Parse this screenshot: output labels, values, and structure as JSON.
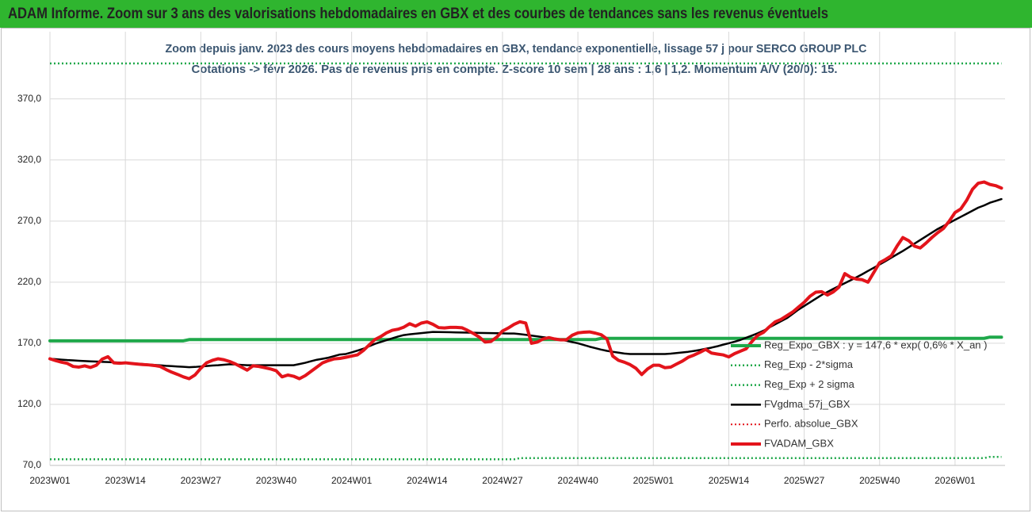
{
  "header": {
    "title": "ADAM Informe. Zoom sur 3 ans des valorisations hebdomadaires en GBX et des courbes de tendances sans les revenus éventuels"
  },
  "chart_data": {
    "type": "line",
    "title": "Zoom depuis janv. 2023 des cours moyens hebdomadaires en GBX, tendance exponentielle, lissage 57 j pour SERCO GROUP PLC",
    "subtitle": "Cotations -> févr 2026. Pas de revenus pris en compte. Z-score 10 sem | 28 ans : 1,6 | 1,2. Momentum A/V (20/0): 15.",
    "grid": true,
    "ylim": [
      70,
      425
    ],
    "yticks": [
      {
        "value": 70,
        "label": "70,0"
      },
      {
        "value": 120,
        "label": "120,0"
      },
      {
        "value": 170,
        "label": "170,0"
      },
      {
        "value": 220,
        "label": "220,0"
      },
      {
        "value": 270,
        "label": "270,0"
      },
      {
        "value": 320,
        "label": "320,0"
      },
      {
        "value": 370,
        "label": "370,0"
      }
    ],
    "categories": [
      "2023W01",
      null,
      null,
      null,
      null,
      null,
      null,
      null,
      null,
      null,
      null,
      null,
      null,
      "2023W14",
      null,
      null,
      null,
      null,
      null,
      null,
      null,
      null,
      null,
      null,
      null,
      null,
      "2023W27",
      null,
      null,
      null,
      null,
      null,
      null,
      null,
      null,
      null,
      null,
      null,
      null,
      "2023W40",
      null,
      null,
      null,
      null,
      null,
      null,
      null,
      null,
      null,
      null,
      null,
      null,
      "2024W01",
      null,
      null,
      null,
      null,
      null,
      null,
      null,
      null,
      null,
      null,
      null,
      null,
      "2024W14",
      null,
      null,
      null,
      null,
      null,
      null,
      null,
      null,
      null,
      null,
      null,
      null,
      "2024W27",
      null,
      null,
      null,
      null,
      null,
      null,
      null,
      null,
      null,
      null,
      null,
      null,
      "2024W40",
      null,
      null,
      null,
      null,
      null,
      null,
      null,
      null,
      null,
      null,
      null,
      null,
      "2025W01",
      null,
      null,
      null,
      null,
      null,
      null,
      null,
      null,
      null,
      null,
      null,
      null,
      "2025W14",
      null,
      null,
      null,
      null,
      null,
      null,
      null,
      null,
      null,
      null,
      null,
      null,
      "2025W27",
      null,
      null,
      null,
      null,
      null,
      null,
      null,
      null,
      null,
      null,
      null,
      null,
      "2025W40",
      null,
      null,
      null,
      null,
      null,
      null,
      null,
      null,
      null,
      null,
      null,
      null,
      "2026W01",
      null,
      null,
      null,
      null,
      null,
      null,
      null,
      null
    ],
    "series": [
      {
        "name": "Reg_Expo_GBX : y = 147,6 * exp( 0,6% *  X_an )",
        "color": "#1fa84a",
        "line_width": 4,
        "dashed": false,
        "values": [
          172,
          172,
          172,
          172,
          172,
          172,
          172,
          172,
          172,
          172,
          172,
          172,
          172,
          172,
          172,
          172,
          172,
          172,
          172,
          172,
          172,
          172,
          172,
          172,
          173,
          173,
          173,
          173,
          173,
          173,
          173,
          173,
          173,
          173,
          173,
          173,
          173,
          173,
          173,
          173,
          173,
          173,
          173,
          173,
          173,
          173,
          173,
          173,
          173,
          173,
          173,
          173,
          173,
          173,
          173,
          173,
          173,
          173,
          173,
          173,
          173,
          173,
          173,
          173,
          173,
          173,
          173,
          173,
          173,
          173,
          173,
          173,
          173,
          173,
          173,
          173,
          173,
          173,
          173,
          173,
          173,
          173,
          173,
          173,
          173,
          173,
          173,
          173,
          173,
          173,
          173,
          173,
          173,
          173,
          173,
          174,
          174,
          174,
          174,
          174,
          174,
          174,
          174,
          174,
          174,
          174,
          174,
          174,
          174,
          174,
          174,
          174,
          174,
          174,
          174,
          174,
          174,
          174,
          174,
          174,
          174,
          174,
          174,
          174,
          174,
          174,
          174,
          174,
          174,
          174,
          174,
          174,
          174,
          174,
          174,
          174,
          174,
          174,
          174,
          174,
          174,
          174,
          174,
          174,
          174,
          174,
          174,
          174,
          174,
          174,
          174,
          174,
          174,
          174,
          174,
          174,
          174,
          174,
          174,
          174,
          174,
          174,
          175,
          175,
          175
        ]
      },
      {
        "name": "Reg_Exp - 2*sigma",
        "color": "#1fa84a",
        "line_width": 2.5,
        "dashed": true,
        "values": [
          75,
          75,
          75,
          75,
          75,
          75,
          75,
          75,
          75,
          75,
          75,
          75,
          75,
          75,
          75,
          75,
          75,
          75,
          75,
          75,
          75,
          75,
          75,
          75,
          75,
          75,
          75,
          75,
          75,
          75,
          75,
          75,
          75,
          75,
          75,
          75,
          75,
          75,
          75,
          75,
          75,
          75,
          75,
          75,
          75,
          75,
          75,
          75,
          75,
          75,
          75,
          75,
          75,
          75,
          75,
          75,
          75,
          75,
          75,
          75,
          75,
          75,
          75,
          75,
          75,
          75,
          75,
          75,
          75,
          75,
          75,
          75,
          75,
          75,
          75,
          75,
          75,
          75,
          75,
          75,
          75,
          76,
          76,
          76,
          76,
          76,
          76,
          76,
          76,
          76,
          76,
          76,
          76,
          76,
          76,
          76,
          76,
          76,
          76,
          76,
          76,
          76,
          76,
          76,
          76,
          76,
          76,
          76,
          76,
          76,
          76,
          76,
          76,
          76,
          76,
          76,
          76,
          76,
          76,
          76,
          76,
          76,
          76,
          76,
          76,
          76,
          76,
          76,
          76,
          76,
          76,
          76,
          76,
          76,
          76,
          76,
          76,
          76,
          76,
          76,
          76,
          76,
          76,
          76,
          76,
          76,
          76,
          76,
          76,
          76,
          76,
          76,
          76,
          76,
          76,
          76,
          76,
          76,
          76,
          76,
          76,
          76,
          77,
          77,
          77
        ]
      },
      {
        "name": "Reg_Exp + 2 sigma",
        "color": "#1fa84a",
        "line_width": 2.5,
        "dashed": true,
        "values": [
          399,
          399,
          399,
          399,
          399,
          399,
          399,
          399,
          399,
          399,
          399,
          399,
          399,
          399,
          399,
          399,
          399,
          399,
          399,
          399,
          399,
          399,
          399,
          399,
          399,
          399,
          399,
          399,
          399,
          399,
          399,
          399,
          399,
          399,
          399,
          399,
          399,
          399,
          399,
          399,
          399,
          399,
          399,
          399,
          399,
          399,
          399,
          399,
          399,
          399,
          399,
          399,
          399,
          399,
          399,
          399,
          399,
          399,
          399,
          399,
          399,
          399,
          399,
          399,
          399,
          399,
          399,
          399,
          399,
          399,
          399,
          399,
          399,
          399,
          399,
          399,
          399,
          399,
          399,
          399,
          399,
          399,
          399,
          399,
          399,
          399,
          399,
          399,
          399,
          399,
          399,
          399,
          399,
          399,
          399,
          399,
          399,
          399,
          399,
          399,
          399,
          399,
          399,
          399,
          399,
          399,
          399,
          399,
          399,
          399,
          399,
          399,
          399,
          399,
          399,
          399,
          399,
          399,
          399,
          399,
          399,
          399,
          399,
          399,
          399,
          399,
          399,
          399,
          399,
          399,
          399,
          399,
          399,
          399,
          399,
          399,
          399,
          399,
          399,
          399,
          399,
          399,
          399,
          399,
          399,
          399,
          399,
          399,
          399,
          399,
          399,
          399,
          399,
          399,
          399,
          399,
          399,
          399,
          399,
          399,
          399,
          399,
          399,
          399,
          399
        ]
      },
      {
        "name": "FVgdma_57j_GBX",
        "color": "#000000",
        "line_width": 2.5,
        "dashed": false,
        "values": [
          157.3,
          157,
          156.6,
          156.2,
          156,
          155.7,
          155.4,
          155.2,
          155,
          154.8,
          154.6,
          154.4,
          154.2,
          154,
          153.7,
          153.3,
          153,
          152.6,
          152.3,
          151.9,
          151.5,
          151.3,
          151,
          150.7,
          150.4,
          150.6,
          151,
          151.4,
          151.8,
          152,
          152.4,
          152.8,
          152.7,
          152.3,
          152,
          152,
          152,
          152,
          152,
          152,
          152,
          152,
          152,
          153,
          154,
          155.3,
          156.5,
          157.3,
          158.2,
          159.5,
          160.8,
          161.2,
          162.5,
          164,
          165.5,
          167.5,
          169.5,
          171,
          172.5,
          174,
          175.5,
          176.7,
          177.3,
          177.8,
          178.3,
          178.8,
          179.3,
          179.2,
          179.1,
          179,
          178.9,
          178.8,
          178.7,
          178.6,
          178.5,
          178.4,
          178.3,
          178.2,
          178.1,
          178,
          178,
          177.5,
          176.9,
          176.3,
          175.6,
          175,
          174.4,
          173.8,
          173,
          172,
          171,
          170,
          168.6,
          167.2,
          166,
          164.8,
          163.8,
          163,
          162.3,
          161.6,
          161.2,
          161.2,
          161.2,
          161.2,
          161.2,
          161.2,
          161.2,
          161.5,
          162,
          162.5,
          163,
          163.7,
          164.5,
          165.5,
          166.4,
          167.5,
          168.8,
          170,
          171.3,
          172.7,
          174.5,
          176.3,
          178.2,
          180.3,
          183,
          185.5,
          188,
          190.5,
          194,
          197.5,
          200.5,
          203.5,
          206.5,
          209.5,
          212,
          214.5,
          216.8,
          219.2,
          221.5,
          224,
          226.5,
          229.2,
          231.8,
          234.5,
          237.2,
          240,
          242.8,
          245.5,
          248.5,
          251.5,
          254.5,
          257.5,
          260.5,
          263.5,
          266,
          268.5,
          271,
          273.5,
          276,
          278.5,
          281,
          282.8,
          285,
          286.5,
          288
        ]
      },
      {
        "name": "Perfo. absolue_GBX",
        "color": "#e3141b",
        "line_width": 2,
        "dashed": true,
        "values": [
          null,
          null,
          null,
          null,
          null,
          null,
          null,
          null,
          null,
          null,
          null,
          null,
          null,
          null,
          null,
          null,
          null,
          null,
          null,
          null,
          null,
          null,
          null,
          null,
          null,
          null,
          null,
          null,
          null,
          null,
          null,
          null,
          null,
          null,
          null,
          null,
          null,
          null,
          null,
          null,
          null,
          null,
          null,
          null,
          null,
          null,
          null,
          null,
          null,
          null,
          null,
          null,
          null,
          null,
          null,
          null,
          null,
          null,
          null,
          null,
          null,
          null,
          null,
          null,
          null,
          null,
          null,
          null,
          null,
          null,
          null,
          null,
          null,
          null,
          null,
          null,
          null,
          null,
          null,
          null,
          null,
          null,
          null,
          null,
          null,
          null,
          null,
          null,
          null,
          null,
          null,
          null,
          null,
          null,
          null,
          null,
          null,
          null,
          null,
          null,
          null,
          null,
          null,
          null,
          null,
          null,
          null,
          null,
          null,
          null,
          null,
          null,
          null,
          null,
          null,
          null,
          null,
          null,
          null,
          null,
          null,
          null,
          null,
          null,
          null,
          null,
          null,
          null,
          null,
          null,
          null,
          null,
          null,
          null,
          null,
          null,
          null,
          null,
          null,
          null,
          null,
          null,
          null,
          null,
          null,
          null,
          null,
          null,
          null,
          null,
          null,
          null,
          null,
          null,
          null,
          null,
          null,
          null,
          null,
          null,
          null,
          null,
          null,
          null,
          null
        ]
      },
      {
        "name": "FVADAM_GBX",
        "color": "#e3141b",
        "line_width": 4,
        "dashed": false,
        "values": [
          157.3,
          155.8,
          154.5,
          153.5,
          151,
          150.5,
          151.5,
          150.2,
          152,
          157,
          159,
          154,
          153.6,
          154,
          153.5,
          153,
          152.6,
          152.3,
          151.8,
          151,
          148.5,
          146.3,
          144.5,
          142.5,
          141,
          144,
          149.5,
          154,
          156,
          157.3,
          156.5,
          155,
          153,
          150.5,
          148,
          151.5,
          151,
          150,
          149,
          147.5,
          142.5,
          144,
          143,
          141,
          143.5,
          147,
          150.5,
          154,
          155.8,
          157.2,
          157.6,
          158.5,
          159.5,
          160.5,
          164,
          168.5,
          173,
          175.4,
          178.5,
          180.6,
          181.5,
          183.2,
          186,
          184,
          186.5,
          187.5,
          185.5,
          182.8,
          182.5,
          183,
          183,
          182.7,
          180.5,
          178,
          175,
          171,
          171.5,
          175,
          180,
          182.5,
          185.5,
          187.6,
          186.5,
          170,
          171,
          173.5,
          174.6,
          173.5,
          172.8,
          172.8,
          176.5,
          178.5,
          179,
          179.3,
          178.3,
          177,
          173.5,
          159.5,
          156,
          154.5,
          152.5,
          149.5,
          144.4,
          149,
          152,
          152,
          150,
          150.5,
          153,
          155.4,
          158.5,
          160.3,
          162.5,
          165,
          162,
          161.2,
          160.5,
          158.8,
          161.5,
          163.5,
          165.5,
          171.5,
          176.5,
          179,
          183.5,
          187.5,
          189.5,
          192.5,
          195.5,
          199.5,
          203.5,
          208.5,
          211.8,
          212.2,
          209.5,
          212,
          216,
          227,
          224,
          222.5,
          222,
          220,
          228,
          236,
          238.5,
          241.5,
          249.5,
          256.5,
          254,
          249.5,
          248,
          252,
          256.5,
          260.5,
          264,
          270,
          277,
          280,
          287,
          296,
          301,
          302,
          300,
          299,
          297
        ]
      }
    ]
  }
}
